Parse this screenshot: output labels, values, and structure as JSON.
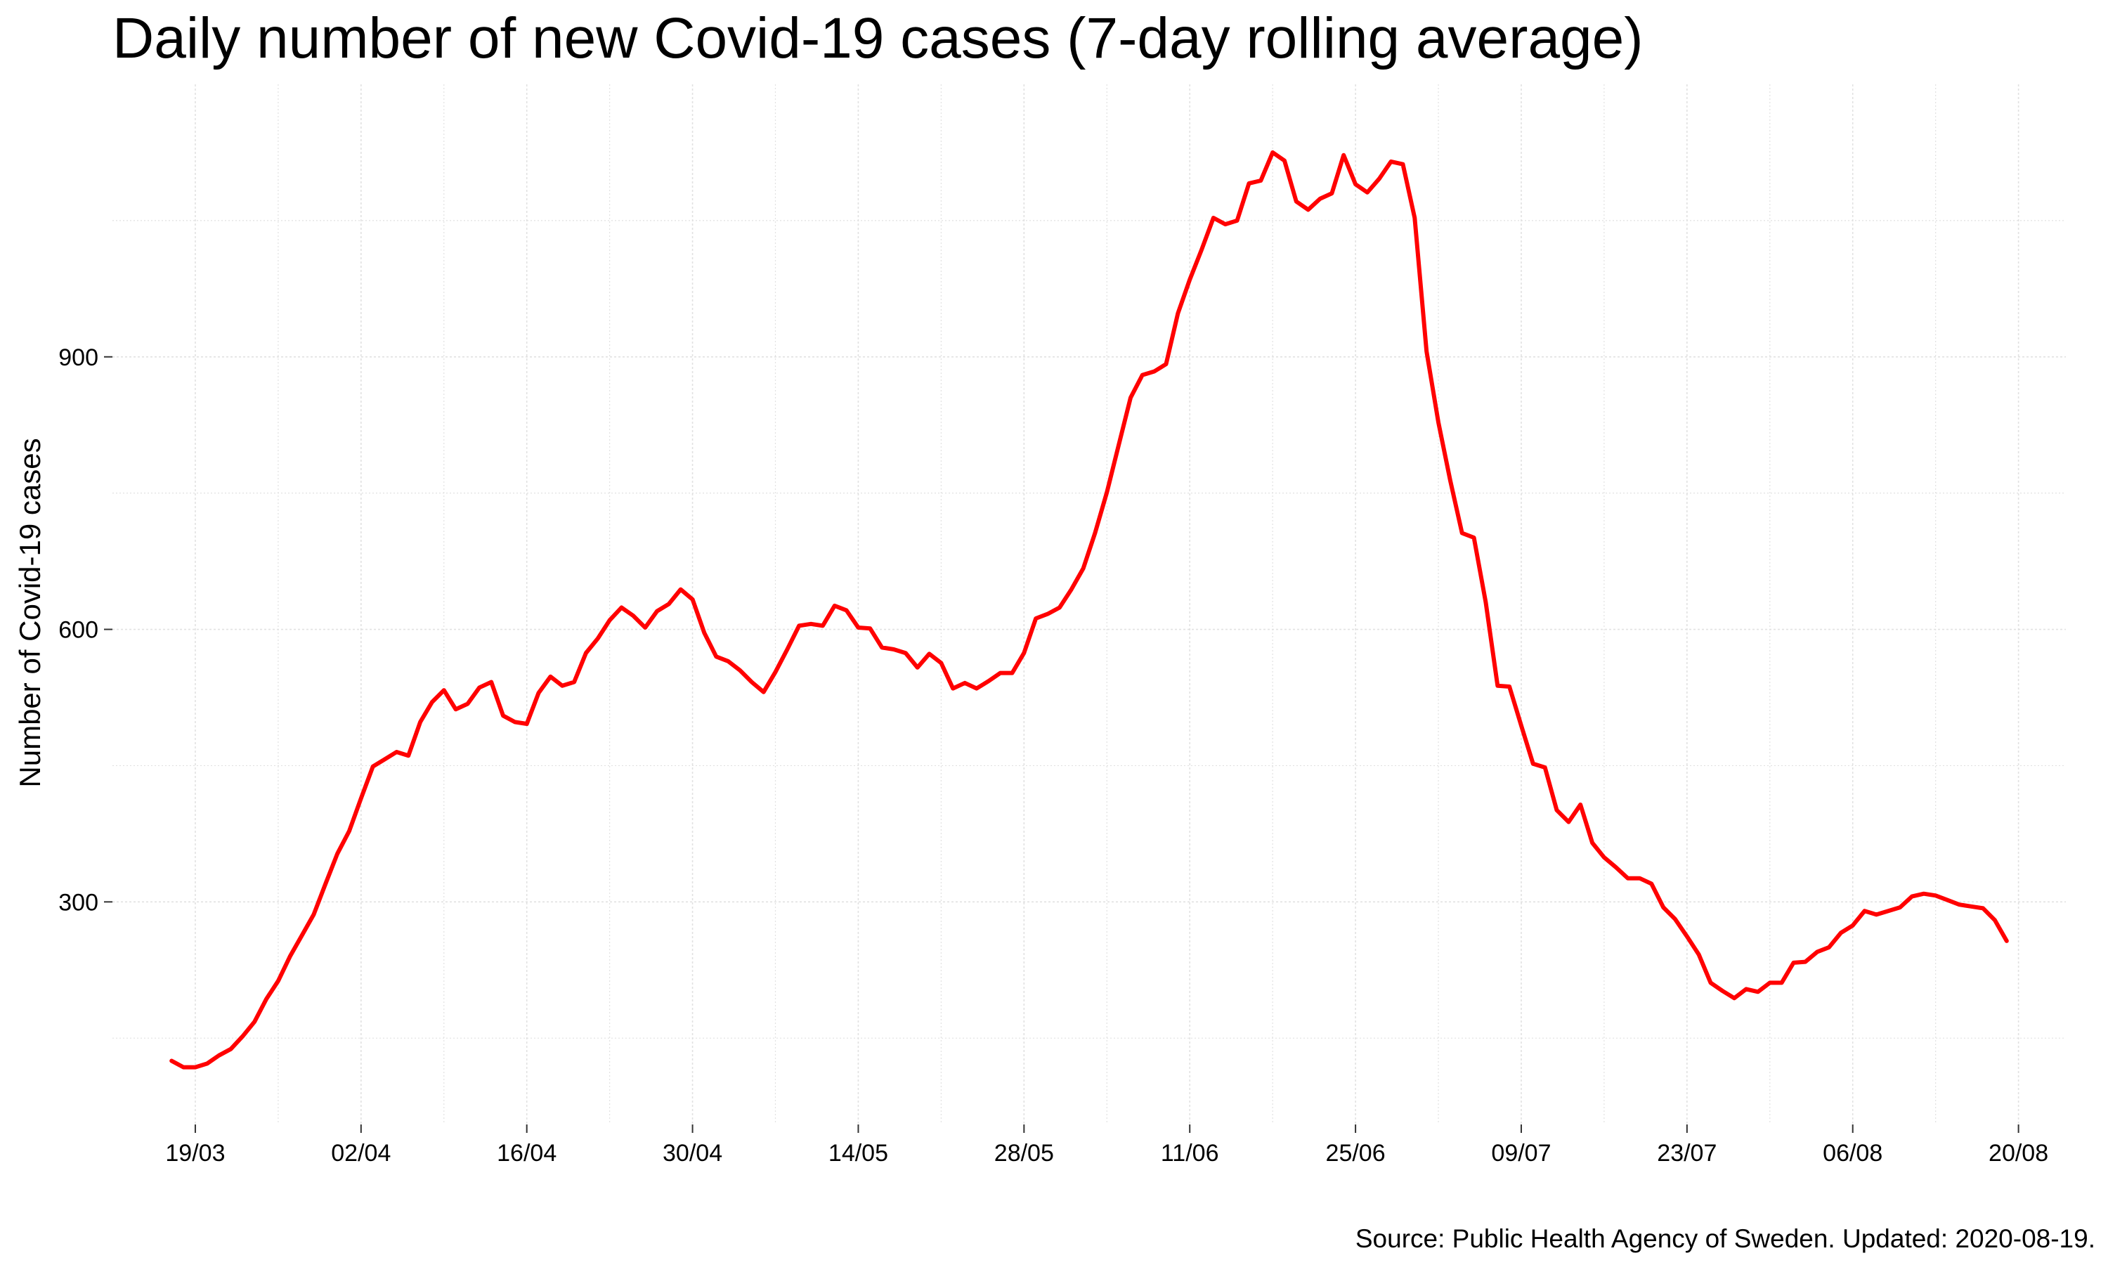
{
  "chart_data": {
    "type": "line",
    "title": "Daily number of new Covid-19 cases (7-day rolling average)",
    "xlabel": "",
    "ylabel": "Number of Covid-19 cases",
    "source": "Source: Public Health Agency of Sweden. Updated: 2020-08-19.",
    "x_range": [
      "2020-03-12",
      "2020-08-24"
    ],
    "ylim": [
      55,
      1200
    ],
    "y_ticks": [
      300,
      600,
      900
    ],
    "y_minor_grid": [
      150,
      450,
      750,
      1050
    ],
    "x_ticks": [
      {
        "date": "2020-03-19",
        "label": "19/03"
      },
      {
        "date": "2020-04-02",
        "label": "02/04"
      },
      {
        "date": "2020-04-16",
        "label": "16/04"
      },
      {
        "date": "2020-04-30",
        "label": "30/04"
      },
      {
        "date": "2020-05-14",
        "label": "14/05"
      },
      {
        "date": "2020-05-28",
        "label": "28/05"
      },
      {
        "date": "2020-06-11",
        "label": "11/06"
      },
      {
        "date": "2020-06-25",
        "label": "25/06"
      },
      {
        "date": "2020-07-09",
        "label": "09/07"
      },
      {
        "date": "2020-07-23",
        "label": "23/07"
      },
      {
        "date": "2020-08-06",
        "label": "06/08"
      },
      {
        "date": "2020-08-20",
        "label": "20/08"
      }
    ],
    "grid": true,
    "legend": "none",
    "series": [
      {
        "color": "#ff0000",
        "start_date": "2020-03-17",
        "values": [
          125,
          118,
          118,
          122,
          131,
          138,
          152,
          168,
          193,
          213,
          240,
          263,
          286,
          320,
          353,
          378,
          414,
          449,
          457,
          465,
          461,
          498,
          520,
          533,
          512,
          518,
          536,
          542,
          505,
          498,
          496,
          530,
          548,
          538,
          542,
          574,
          590,
          610,
          624,
          615,
          602,
          620,
          628,
          644,
          633,
          596,
          570,
          565,
          555,
          542,
          531,
          553,
          578,
          604,
          606,
          604,
          626,
          621,
          602,
          601,
          580,
          578,
          574,
          558,
          573,
          563,
          535,
          541,
          535,
          543,
          552,
          552,
          574,
          612,
          617,
          624,
          644,
          667,
          706,
          751,
          803,
          855,
          880,
          884,
          892,
          948,
          985,
          1018,
          1053,
          1046,
          1050,
          1091,
          1094,
          1125,
          1116,
          1071,
          1062,
          1074,
          1080,
          1122,
          1090,
          1081,
          1096,
          1115,
          1112,
          1053,
          906,
          828,
          764,
          706,
          701,
          630,
          538,
          537,
          494,
          452,
          448,
          401,
          388,
          407,
          365,
          349,
          338,
          326,
          326,
          320,
          294,
          281,
          262,
          242,
          211,
          202,
          194,
          204,
          201,
          211,
          211,
          233,
          234,
          245,
          250,
          266,
          274,
          290,
          286,
          290,
          294,
          306,
          309,
          307,
          302,
          297,
          295,
          293,
          280,
          257
        ]
      }
    ]
  }
}
